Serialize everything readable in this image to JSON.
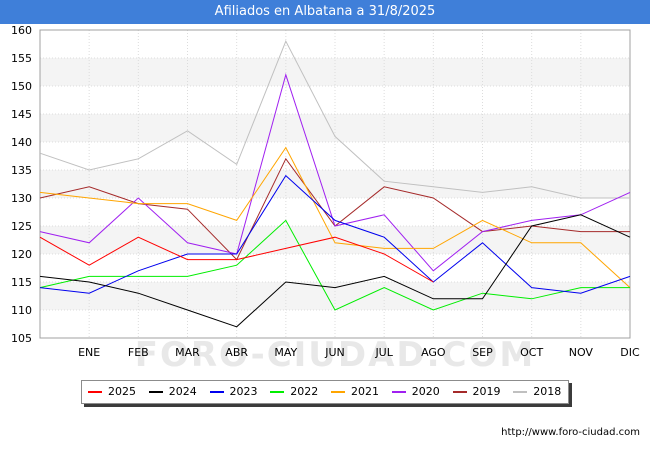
{
  "title": "Afiliados en Albatana a 31/8/2025",
  "source": "http://www.foro-ciudad.com",
  "watermark": "FORO-CIUDAD.COM",
  "chart_data": {
    "type": "line",
    "title": "Afiliados en Albatana a 31/8/2025",
    "xlabel": "",
    "ylabel": "",
    "x": [
      "",
      "ENE",
      "FEB",
      "MAR",
      "ABR",
      "MAY",
      "JUN",
      "JUL",
      "AGO",
      "SEP",
      "OCT",
      "NOV",
      "DIC"
    ],
    "ylim": [
      105,
      160
    ],
    "yticks": [
      105,
      110,
      115,
      120,
      125,
      130,
      135,
      140,
      145,
      150,
      155,
      160
    ],
    "grid": true,
    "legend_position": "bottom",
    "series": [
      {
        "name": "2025",
        "color": "#ff0000",
        "values": [
          123,
          118,
          123,
          119,
          119,
          121,
          123,
          120,
          115,
          null,
          null,
          null,
          null
        ]
      },
      {
        "name": "2024",
        "color": "#000000",
        "values": [
          116,
          115,
          113,
          110,
          107,
          115,
          114,
          116,
          112,
          112,
          125,
          127,
          123
        ]
      },
      {
        "name": "2023",
        "color": "#0000ee",
        "values": [
          114,
          113,
          117,
          120,
          120,
          134,
          126,
          123,
          115,
          122,
          114,
          113,
          116
        ]
      },
      {
        "name": "2022",
        "color": "#00ee00",
        "values": [
          114,
          116,
          116,
          116,
          118,
          126,
          110,
          114,
          110,
          113,
          112,
          114,
          114
        ]
      },
      {
        "name": "2021",
        "color": "#ffa500",
        "values": [
          131,
          130,
          129,
          129,
          126,
          139,
          122,
          121,
          121,
          126,
          122,
          122,
          114
        ]
      },
      {
        "name": "2020",
        "color": "#a020f0",
        "values": [
          124,
          122,
          130,
          122,
          120,
          152,
          125,
          127,
          117,
          124,
          126,
          127,
          131
        ]
      },
      {
        "name": "2019",
        "color": "#a52a2a",
        "values": [
          130,
          132,
          129,
          128,
          119,
          137,
          125,
          132,
          130,
          124,
          125,
          124,
          124
        ]
      },
      {
        "name": "2018",
        "color": "#c0c0c0",
        "values": [
          138,
          135,
          137,
          142,
          136,
          158,
          141,
          133,
          132,
          131,
          132,
          130,
          130
        ]
      }
    ]
  }
}
